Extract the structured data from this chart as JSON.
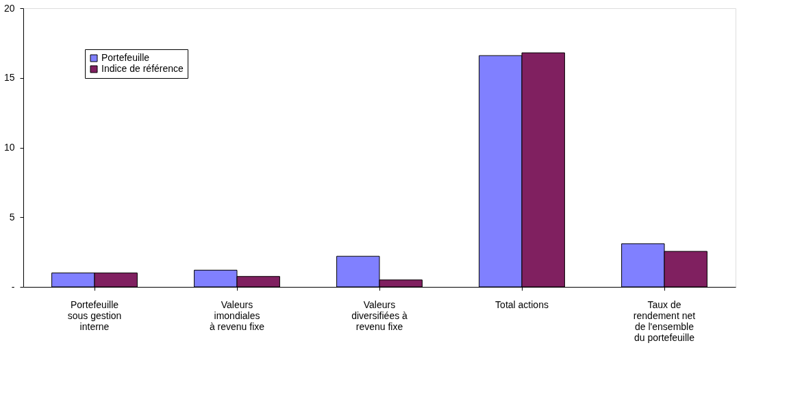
{
  "chart_data": {
    "type": "bar",
    "categories": [
      "Portefeuille\nsous gestion\ninterne",
      "Valeurs\nimondiales\nà revenu fixe",
      "Valeurs\ndiversifiées à\nrevenu fixe",
      "Total actions",
      "Taux de\nrendement net\nde l'ensemble\ndu portefeuille"
    ],
    "series": [
      {
        "name": "Portefeuille",
        "color": "#8080ff",
        "values": [
          1.0,
          1.2,
          2.2,
          16.6,
          3.1
        ]
      },
      {
        "name": "Indice de référence",
        "color": "#802060",
        "values": [
          1.0,
          0.75,
          0.5,
          16.8,
          2.55
        ]
      }
    ],
    "ylim": [
      0,
      20
    ],
    "yticks": [
      {
        "value": 0,
        "label": "-"
      },
      5,
      10,
      15,
      20
    ],
    "grid": false,
    "legend": "top left"
  }
}
